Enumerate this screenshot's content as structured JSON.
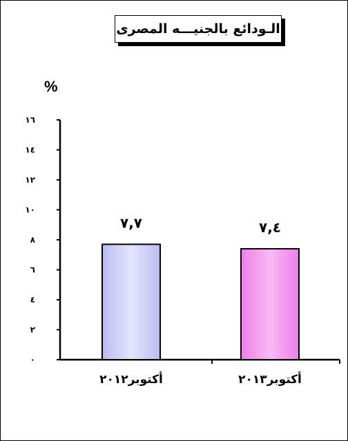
{
  "chart_data": {
    "type": "bar",
    "title": "الـودائع بالجنيـــه المصرى",
    "ylabel": "%",
    "ylim": [
      0,
      16
    ],
    "yticks": [
      0,
      2,
      4,
      6,
      8,
      10,
      12,
      14,
      16
    ],
    "ytick_labels": [
      "٠",
      "٢",
      "٤",
      "٦",
      "٨",
      "١٠",
      "١٢",
      "١٤",
      "١٦"
    ],
    "categories": [
      "أكتوبر٢٠١٢",
      "أكتوبر٢٠١٣"
    ],
    "values": [
      7.7,
      7.4
    ],
    "data_labels": [
      "٧,٧",
      "٧,٤"
    ],
    "colors": [
      "#d4d6fb",
      "#f6a0f3"
    ],
    "grid": false,
    "legend": "none"
  }
}
